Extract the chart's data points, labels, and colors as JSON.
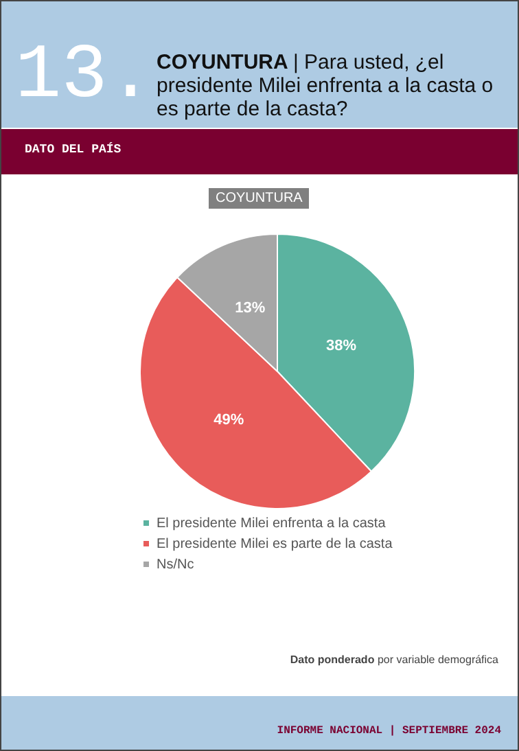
{
  "chart_data": {
    "type": "pie",
    "title": "COYUNTURA | Para usted, ¿el presidente Milei enfrenta a la casta o es parte de la casta?",
    "subtitle": "COYUNTURA",
    "categories": [
      "El presidente Milei enfrenta a la casta",
      "El presidente Milei es parte de la casta",
      "Ns/Nc"
    ],
    "values": [
      38,
      49,
      13
    ],
    "colors": [
      "#5bb3a0",
      "#e85c5a",
      "#a6a6a6"
    ],
    "value_labels": [
      "38%",
      "49%",
      "13%"
    ],
    "legend": "bottom left",
    "annotations": [
      "13.",
      "DATO DEL PAÍS",
      "Dato ponderado por variable demográfica",
      "INFORME NACIONAL | SEPTIEMBRE 2024"
    ]
  }
}
